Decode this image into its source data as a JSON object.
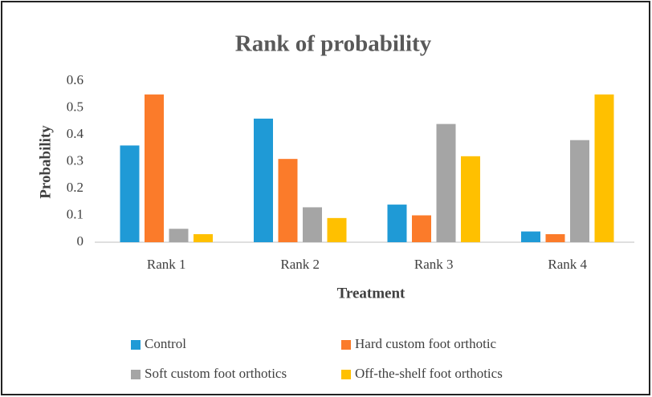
{
  "chart_data": {
    "type": "bar",
    "title": "Rank of probability",
    "x_label": "Treatment",
    "y_label": "Probability",
    "categories": [
      "Rank 1",
      "Rank 2",
      "Rank 3",
      "Rank 4"
    ],
    "series": [
      {
        "name": "Control",
        "color": "#1f9ad6",
        "values": [
          0.36,
          0.46,
          0.14,
          0.04
        ]
      },
      {
        "name": "Hard custom foot orthotic",
        "color": "#fb7b2a",
        "values": [
          0.55,
          0.31,
          0.1,
          0.03
        ]
      },
      {
        "name": "Soft custom foot orthotics",
        "color": "#a5a5a5",
        "values": [
          0.05,
          0.13,
          0.44,
          0.38
        ]
      },
      {
        "name": "Off-the-shelf foot orthotics",
        "color": "#ffc000",
        "values": [
          0.03,
          0.09,
          0.32,
          0.55
        ]
      }
    ],
    "ylim": [
      0,
      0.6
    ],
    "yticks": [
      0,
      0.1,
      0.2,
      0.3,
      0.4,
      0.5,
      0.6
    ],
    "grid": false
  }
}
